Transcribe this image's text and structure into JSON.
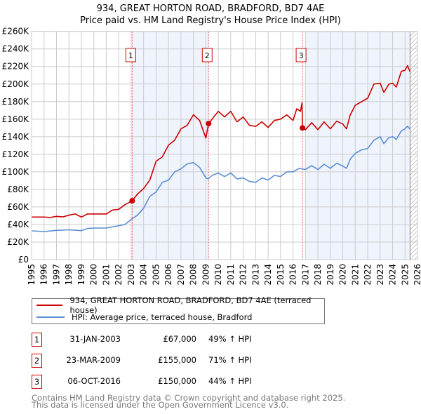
{
  "title": "934, GREAT HORTON ROAD, BRADFORD, BD7 4AE",
  "subtitle": "Price paid vs. HM Land Registry's House Price Index (HPI)",
  "chart_data": {
    "type": "line",
    "title": "934, GREAT HORTON ROAD, BRADFORD, BD7 4AE — Price paid vs. HM Land Registry's House Price Index (HPI)",
    "xlabel": "",
    "ylabel": "",
    "xlim": [
      1995,
      2026
    ],
    "ylim": [
      0,
      260000
    ],
    "grid": true,
    "x_ticks": [
      "1995",
      "1996",
      "1997",
      "1998",
      "1999",
      "2000",
      "2001",
      "2002",
      "2003",
      "2004",
      "2005",
      "2006",
      "2007",
      "2008",
      "2009",
      "2010",
      "2011",
      "2012",
      "2013",
      "2014",
      "2015",
      "2016",
      "2017",
      "2018",
      "2019",
      "2020",
      "2021",
      "2022",
      "2023",
      "2024",
      "2025",
      "2026"
    ],
    "y_ticks": [
      "£0",
      "£20K",
      "£40K",
      "£60K",
      "£80K",
      "£100K",
      "£120K",
      "£140K",
      "£160K",
      "£180K",
      "£200K",
      "£220K",
      "£240K",
      "£260K"
    ],
    "shaded_ranges": [
      [
        2003.08,
        2009.22
      ],
      [
        2017.0,
        2025.4
      ]
    ],
    "forecast_hatch_from": 2025.4,
    "colors": {
      "property": "#cc0000",
      "hpi": "#5b8fd4",
      "shade": "#eef3fc",
      "grid": "#cccccc"
    },
    "series": [
      {
        "name": "934, GREAT HORTON ROAD, BRADFORD, BD7 4AE (terraced house)",
        "color": "#cc0000",
        "points": [
          [
            1995,
            48500
          ],
          [
            1996,
            48500
          ],
          [
            1996.5,
            48000
          ],
          [
            1997,
            49300
          ],
          [
            1997.5,
            48700
          ],
          [
            1998,
            50600
          ],
          [
            1998.5,
            52000
          ],
          [
            1999,
            48500
          ],
          [
            1999.5,
            52000
          ],
          [
            2000,
            52000
          ],
          [
            2001,
            52000
          ],
          [
            2001.5,
            56500
          ],
          [
            2002,
            57300
          ],
          [
            2002.5,
            62600
          ],
          [
            2003.08,
            67000
          ],
          [
            2003.5,
            74600
          ],
          [
            2004,
            81000
          ],
          [
            2004.5,
            90600
          ],
          [
            2005,
            112000
          ],
          [
            2005.5,
            117000
          ],
          [
            2006,
            130500
          ],
          [
            2006.5,
            136000
          ],
          [
            2007,
            149000
          ],
          [
            2007.5,
            153000
          ],
          [
            2008,
            165000
          ],
          [
            2008.5,
            158500
          ],
          [
            2009,
            138500
          ],
          [
            2009.22,
            155000
          ],
          [
            2009.5,
            160000
          ],
          [
            2010,
            169000
          ],
          [
            2010.5,
            162500
          ],
          [
            2011,
            169000
          ],
          [
            2011.5,
            157000
          ],
          [
            2012,
            162500
          ],
          [
            2012.5,
            153000
          ],
          [
            2013,
            151800
          ],
          [
            2013.5,
            157000
          ],
          [
            2014,
            150500
          ],
          [
            2014.5,
            158500
          ],
          [
            2015,
            160000
          ],
          [
            2015.5,
            165000
          ],
          [
            2016,
            158500
          ],
          [
            2016.3,
            171800
          ],
          [
            2016.6,
            169000
          ],
          [
            2016.72,
            178500
          ],
          [
            2016.76,
            150000
          ],
          [
            2017,
            148000
          ],
          [
            2017.5,
            156000
          ],
          [
            2018,
            148000
          ],
          [
            2018.5,
            157000
          ],
          [
            2019,
            149000
          ],
          [
            2019.5,
            157700
          ],
          [
            2020,
            154500
          ],
          [
            2020.3,
            149000
          ],
          [
            2020.6,
            165000
          ],
          [
            2021,
            175800
          ],
          [
            2021.5,
            179800
          ],
          [
            2022,
            183800
          ],
          [
            2022.5,
            200000
          ],
          [
            2023,
            201000
          ],
          [
            2023.3,
            190500
          ],
          [
            2023.7,
            199800
          ],
          [
            2024,
            201000
          ],
          [
            2024.3,
            196600
          ],
          [
            2024.7,
            214400
          ],
          [
            2025,
            215800
          ],
          [
            2025.2,
            221000
          ],
          [
            2025.4,
            214000
          ]
        ]
      },
      {
        "name": "HPI: Average price, terraced house, Bradford",
        "color": "#5b8fd4",
        "points": [
          [
            1995,
            32800
          ],
          [
            1996,
            32000
          ],
          [
            1997,
            33300
          ],
          [
            1998,
            34000
          ],
          [
            1999,
            33000
          ],
          [
            1999.5,
            35500
          ],
          [
            2000,
            36000
          ],
          [
            2001,
            36000
          ],
          [
            2002,
            38600
          ],
          [
            2002.5,
            40000
          ],
          [
            2003,
            45800
          ],
          [
            2003.5,
            50600
          ],
          [
            2004,
            58600
          ],
          [
            2004.5,
            72000
          ],
          [
            2005,
            77000
          ],
          [
            2005.5,
            88000
          ],
          [
            2006,
            90600
          ],
          [
            2006.5,
            100000
          ],
          [
            2007,
            103400
          ],
          [
            2007.5,
            109000
          ],
          [
            2008,
            110500
          ],
          [
            2008.5,
            105000
          ],
          [
            2009,
            93000
          ],
          [
            2009.2,
            92000
          ],
          [
            2009.5,
            96000
          ],
          [
            2010,
            98600
          ],
          [
            2010.5,
            94600
          ],
          [
            2011,
            98600
          ],
          [
            2011.5,
            92000
          ],
          [
            2012,
            93000
          ],
          [
            2012.5,
            89000
          ],
          [
            2013,
            88000
          ],
          [
            2013.5,
            93000
          ],
          [
            2014,
            90600
          ],
          [
            2014.5,
            96000
          ],
          [
            2015,
            94600
          ],
          [
            2015.5,
            100000
          ],
          [
            2016,
            100000
          ],
          [
            2016.5,
            104000
          ],
          [
            2017,
            102600
          ],
          [
            2017.5,
            107000
          ],
          [
            2018,
            102600
          ],
          [
            2018.5,
            108700
          ],
          [
            2019,
            104000
          ],
          [
            2019.5,
            109700
          ],
          [
            2020,
            106600
          ],
          [
            2020.3,
            104000
          ],
          [
            2020.6,
            114500
          ],
          [
            2021,
            121000
          ],
          [
            2021.5,
            125000
          ],
          [
            2022,
            126500
          ],
          [
            2022.5,
            136000
          ],
          [
            2023,
            140000
          ],
          [
            2023.3,
            132000
          ],
          [
            2023.7,
            139000
          ],
          [
            2024,
            140000
          ],
          [
            2024.3,
            137000
          ],
          [
            2024.7,
            146500
          ],
          [
            2025,
            149000
          ],
          [
            2025.2,
            152000
          ],
          [
            2025.4,
            148600
          ]
        ]
      }
    ],
    "sales": [
      {
        "label": "1",
        "x": 2003.08,
        "price": 67000
      },
      {
        "label": "2",
        "x": 2009.22,
        "price": 155000
      },
      {
        "label": "3",
        "x": 2016.76,
        "price": 150000
      }
    ]
  },
  "legend": {
    "property": "934, GREAT HORTON ROAD, BRADFORD, BD7 4AE (terraced house)",
    "hpi": "HPI: Average price, terraced house, Bradford"
  },
  "transactions": [
    {
      "num": "1",
      "date": "31-JAN-2003",
      "price": "£67,000",
      "hpi": "49% ↑ HPI"
    },
    {
      "num": "2",
      "date": "23-MAR-2009",
      "price": "£155,000",
      "hpi": "71% ↑ HPI"
    },
    {
      "num": "3",
      "date": "06-OCT-2016",
      "price": "£150,000",
      "hpi": "44% ↑ HPI"
    }
  ],
  "footer": {
    "line1": "Contains HM Land Registry data © Crown copyright and database right 2025.",
    "line2": "This data is licensed under the Open Government Licence v3.0."
  }
}
